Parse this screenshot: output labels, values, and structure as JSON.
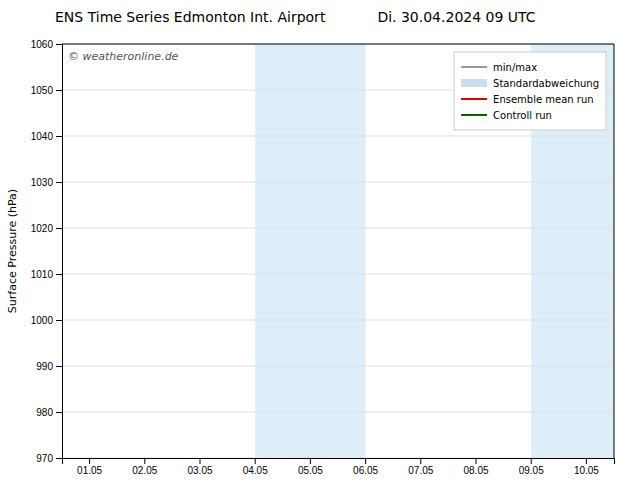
{
  "chart_data": {
    "type": "line",
    "title": "ENS Time Series Edmonton Int. Airport",
    "subtitle": "Di. 30.04.2024 09 UTC",
    "y_label": "Surface Pressure (hPa)",
    "annotation": "© weatheronline.de",
    "categories": [
      "01.05",
      "02.05",
      "03.05",
      "04.05",
      "05.05",
      "06.05",
      "07.05",
      "08.05",
      "09.05",
      "10.05"
    ],
    "series": [
      {
        "name": "min/max",
        "color": "#999999",
        "line_style": "solid",
        "values": [
          null,
          null,
          null,
          null,
          null,
          null,
          null,
          null,
          null,
          null
        ]
      },
      {
        "name": "Standardabweichung",
        "color": "#ccddee",
        "line_style": "band",
        "values": [
          null,
          null,
          null,
          null,
          null,
          null,
          null,
          null,
          null,
          null
        ]
      },
      {
        "name": "Ensemble mean run",
        "color": "#dd0000",
        "line_style": "solid",
        "values": [
          null,
          null,
          null,
          null,
          null,
          null,
          null,
          null,
          null,
          null
        ]
      },
      {
        "name": "Controll run",
        "color": "#006600",
        "line_style": "solid",
        "values": [
          null,
          null,
          null,
          null,
          null,
          null,
          null,
          null,
          null,
          null
        ]
      }
    ],
    "shaded_regions": [
      {
        "start": "04.05",
        "end": "06.05",
        "color": "#ddeef8"
      },
      {
        "start": "09.05",
        "color": "#ddeef8"
      }
    ],
    "ylim": [
      970,
      1060
    ],
    "yticks": [
      970,
      980,
      990,
      1000,
      1010,
      1020,
      1030,
      1040,
      1050,
      1060
    ],
    "grid": true,
    "legend": "upper right"
  }
}
